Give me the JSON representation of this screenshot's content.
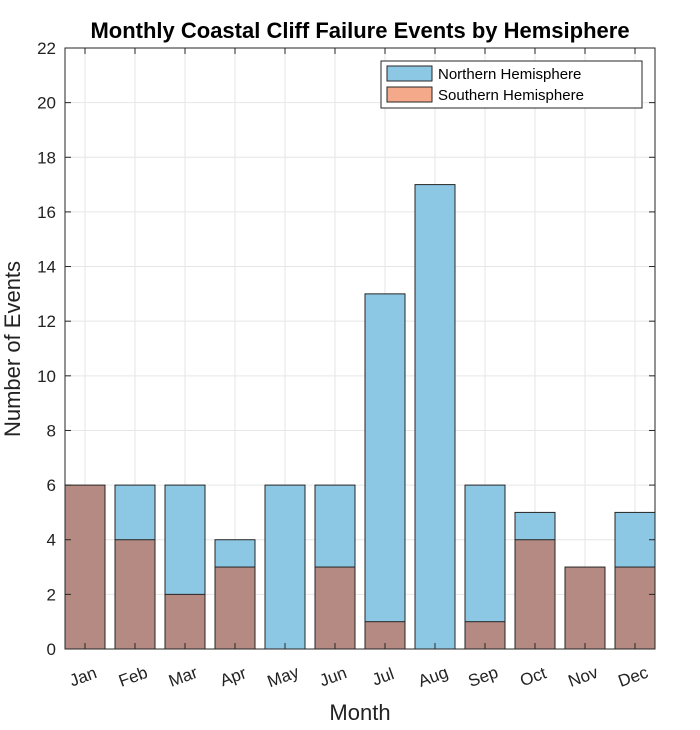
{
  "chart_data": {
    "type": "bar",
    "title": "Monthly Coastal Cliff Failure Events by Hemsiphere",
    "xlabel": "Month",
    "ylabel": "Number of Events",
    "categories": [
      "Jan",
      "Feb",
      "Mar",
      "Apr",
      "May",
      "Jun",
      "Jul",
      "Aug",
      "Sep",
      "Oct",
      "Nov",
      "Dec"
    ],
    "series": [
      {
        "name": "Northern Hemisphere",
        "color": "#8cc8e4",
        "values": [
          0,
          6,
          6,
          4,
          6,
          6,
          13,
          17,
          6,
          5,
          0,
          5
        ]
      },
      {
        "name": "Southern Hemisphere",
        "color": "#b48a82",
        "legend_color": "#f4a98b",
        "values": [
          6,
          4,
          2,
          3,
          0,
          3,
          1,
          0,
          1,
          4,
          3,
          3
        ]
      }
    ],
    "ylim": [
      0,
      22
    ],
    "yticks": [
      0,
      2,
      4,
      6,
      8,
      10,
      12,
      14,
      16,
      18,
      20,
      22
    ],
    "grid": true,
    "legend_position": "top-right",
    "bar_layout": "overlapped"
  }
}
